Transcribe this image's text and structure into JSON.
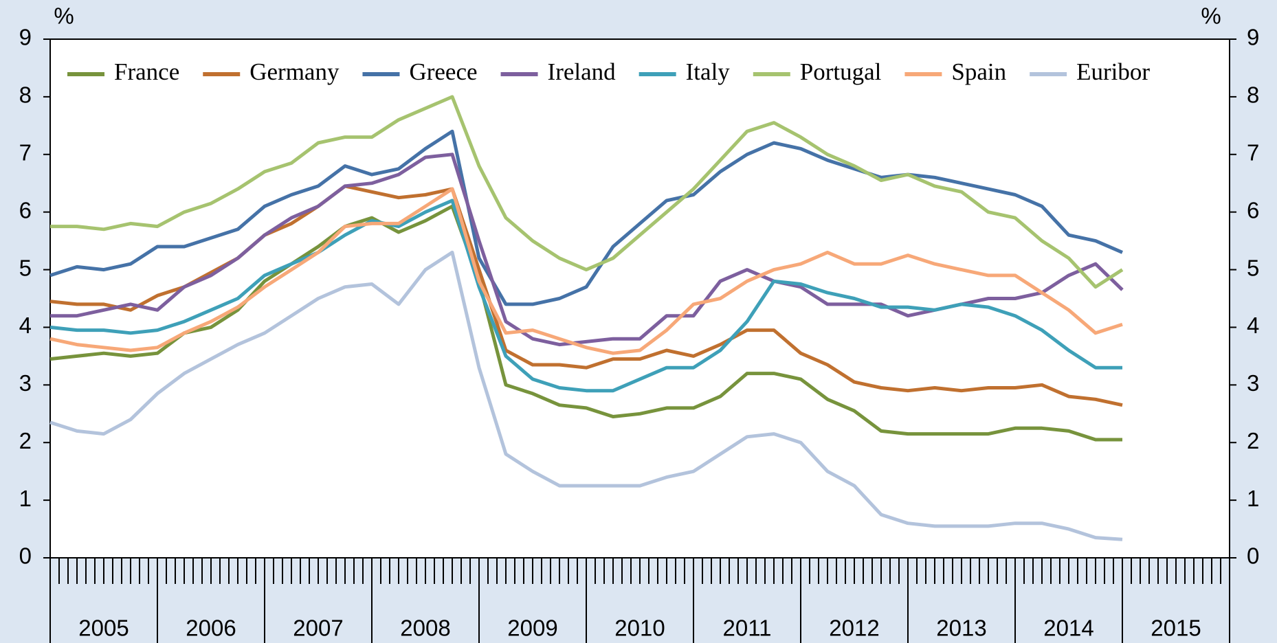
{
  "chart_data": {
    "type": "line",
    "y_label": "%",
    "y2_label": "%",
    "x": [
      2005,
      2005.25,
      2005.5,
      2005.75,
      2006,
      2006.25,
      2006.5,
      2006.75,
      2007,
      2007.25,
      2007.5,
      2007.75,
      2008,
      2008.25,
      2008.5,
      2008.75,
      2009,
      2009.25,
      2009.5,
      2009.75,
      2010,
      2010.25,
      2010.5,
      2010.75,
      2011,
      2011.25,
      2011.5,
      2011.75,
      2012,
      2012.25,
      2012.5,
      2012.75,
      2013,
      2013.25,
      2013.5,
      2013.75,
      2014,
      2014.25,
      2014.5,
      2014.75,
      2015
    ],
    "xlim": [
      2005,
      2016
    ],
    "xticks": [
      {
        "value": 2005.5,
        "label": "2005"
      },
      {
        "value": 2006.5,
        "label": "2006"
      },
      {
        "value": 2007.5,
        "label": "2007"
      },
      {
        "value": 2008.5,
        "label": "2008"
      },
      {
        "value": 2009.5,
        "label": "2009"
      },
      {
        "value": 2010.5,
        "label": "2010"
      },
      {
        "value": 2011.5,
        "label": "2011"
      },
      {
        "value": 2012.5,
        "label": "2012"
      },
      {
        "value": 2013.5,
        "label": "2013"
      },
      {
        "value": 2014.5,
        "label": "2014"
      },
      {
        "value": 2015.5,
        "label": "2015"
      }
    ],
    "ylim": [
      0,
      9
    ],
    "yticks": [
      0,
      1,
      2,
      3,
      4,
      5,
      6,
      7,
      8,
      9
    ],
    "y2lim": [
      0,
      9
    ],
    "y2ticks": [
      0,
      1,
      2,
      3,
      4,
      5,
      6,
      7,
      8,
      9
    ],
    "legend": "top",
    "series": [
      {
        "name": "France",
        "color": "#77933c",
        "values": [
          3.45,
          3.5,
          3.55,
          3.5,
          3.55,
          3.9,
          4.0,
          4.3,
          4.8,
          5.1,
          5.4,
          5.75,
          5.9,
          5.65,
          5.85,
          6.1,
          4.8,
          3.0,
          2.85,
          2.65,
          2.6,
          2.45,
          2.5,
          2.6,
          2.6,
          2.8,
          3.2,
          3.2,
          3.1,
          2.75,
          2.55,
          2.2,
          2.15,
          2.15,
          2.15,
          2.15,
          2.25,
          2.25,
          2.2,
          2.05,
          2.05
        ]
      },
      {
        "name": "Germany",
        "color": "#c0702f",
        "values": [
          4.45,
          4.4,
          4.4,
          4.3,
          4.55,
          4.7,
          4.95,
          5.2,
          5.6,
          5.8,
          6.1,
          6.45,
          6.35,
          6.25,
          6.3,
          6.4,
          5.0,
          3.6,
          3.35,
          3.35,
          3.3,
          3.45,
          3.45,
          3.6,
          3.5,
          3.7,
          3.95,
          3.95,
          3.55,
          3.35,
          3.05,
          2.95,
          2.9,
          2.95,
          2.9,
          2.95,
          2.95,
          3.0,
          2.8,
          2.75,
          2.65
        ]
      },
      {
        "name": "Greece",
        "color": "#4572a7",
        "values": [
          4.9,
          5.05,
          5.0,
          5.1,
          5.4,
          5.4,
          5.55,
          5.7,
          6.1,
          6.3,
          6.45,
          6.8,
          6.65,
          6.75,
          7.1,
          7.4,
          5.2,
          4.4,
          4.4,
          4.5,
          4.7,
          5.4,
          5.8,
          6.2,
          6.3,
          6.7,
          7.0,
          7.2,
          7.1,
          6.9,
          6.75,
          6.6,
          6.65,
          6.6,
          6.5,
          6.4,
          6.3,
          6.1,
          5.6,
          5.5,
          5.3
        ]
      },
      {
        "name": "Ireland",
        "color": "#7d5f9e",
        "values": [
          4.2,
          4.2,
          4.3,
          4.4,
          4.3,
          4.7,
          4.9,
          5.2,
          5.6,
          5.9,
          6.1,
          6.45,
          6.5,
          6.65,
          6.95,
          7.0,
          5.5,
          4.1,
          3.8,
          3.7,
          3.75,
          3.8,
          3.8,
          4.2,
          4.2,
          4.8,
          5.0,
          4.8,
          4.7,
          4.4,
          4.4,
          4.4,
          4.2,
          4.3,
          4.4,
          4.5,
          4.5,
          4.6,
          4.9,
          5.1,
          4.65
        ]
      },
      {
        "name": "Italy",
        "color": "#3ea0b8",
        "values": [
          4.0,
          3.95,
          3.95,
          3.9,
          3.95,
          4.1,
          4.3,
          4.5,
          4.9,
          5.1,
          5.3,
          5.6,
          5.85,
          5.75,
          6.0,
          6.2,
          4.7,
          3.5,
          3.1,
          2.95,
          2.9,
          2.9,
          3.1,
          3.3,
          3.3,
          3.6,
          4.1,
          4.8,
          4.75,
          4.6,
          4.5,
          4.35,
          4.35,
          4.3,
          4.4,
          4.35,
          4.2,
          3.95,
          3.6,
          3.3,
          3.3
        ]
      },
      {
        "name": "Portugal",
        "color": "#a6c36f",
        "values": [
          5.75,
          5.75,
          5.7,
          5.8,
          5.75,
          6.0,
          6.15,
          6.4,
          6.7,
          6.85,
          7.2,
          7.3,
          7.3,
          7.6,
          7.8,
          8.0,
          6.8,
          5.9,
          5.5,
          5.2,
          5.0,
          5.2,
          5.6,
          6.0,
          6.4,
          6.9,
          7.4,
          7.55,
          7.3,
          7.0,
          6.8,
          6.55,
          6.65,
          6.45,
          6.35,
          6.0,
          5.9,
          5.5,
          5.2,
          4.7,
          5.0
        ]
      },
      {
        "name": "Spain",
        "color": "#f7a878",
        "values": [
          3.8,
          3.7,
          3.65,
          3.6,
          3.65,
          3.9,
          4.1,
          4.35,
          4.7,
          5.0,
          5.3,
          5.75,
          5.8,
          5.8,
          6.1,
          6.4,
          4.8,
          3.9,
          3.95,
          3.8,
          3.65,
          3.55,
          3.6,
          3.95,
          4.4,
          4.5,
          4.8,
          5.0,
          5.1,
          5.3,
          5.1,
          5.1,
          5.25,
          5.1,
          5.0,
          4.9,
          4.9,
          4.6,
          4.3,
          3.9,
          4.05
        ]
      },
      {
        "name": "Euribor",
        "color": "#b3c3dc",
        "values": [
          2.35,
          2.2,
          2.15,
          2.4,
          2.85,
          3.2,
          3.45,
          3.7,
          3.9,
          4.2,
          4.5,
          4.7,
          4.75,
          4.4,
          5.0,
          5.3,
          3.3,
          1.8,
          1.5,
          1.25,
          1.25,
          1.25,
          1.25,
          1.4,
          1.5,
          1.8,
          2.1,
          2.15,
          2.0,
          1.5,
          1.25,
          0.75,
          0.6,
          0.55,
          0.55,
          0.55,
          0.6,
          0.6,
          0.5,
          0.35,
          0.32
        ]
      }
    ]
  }
}
